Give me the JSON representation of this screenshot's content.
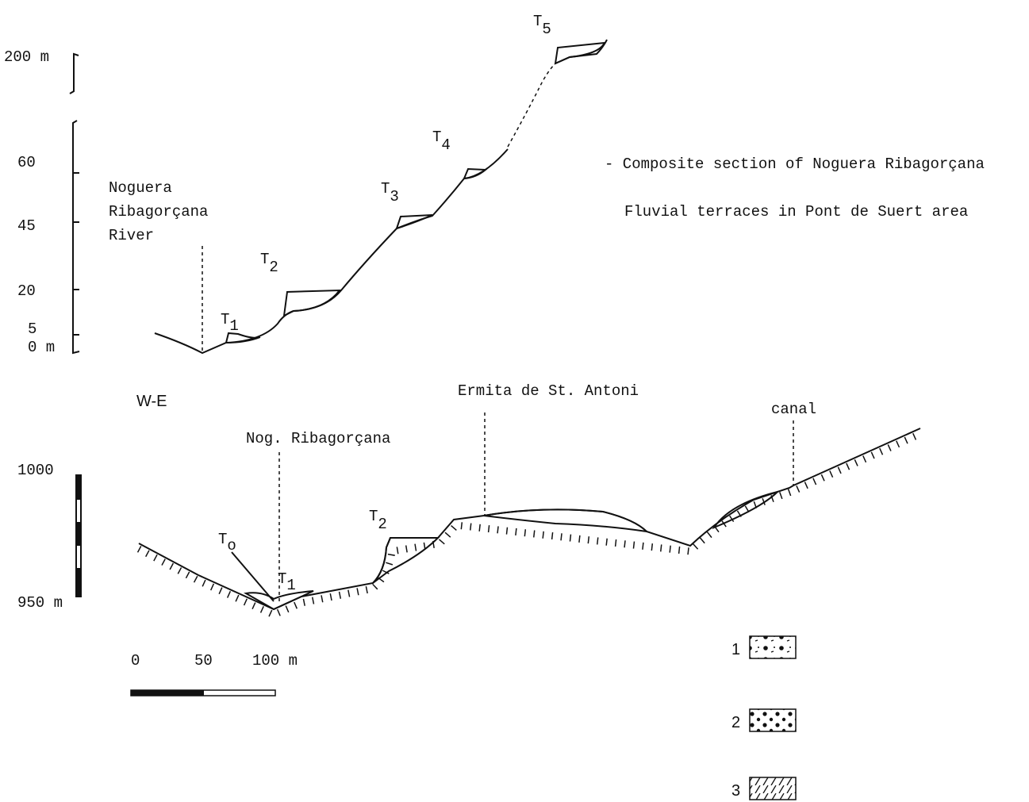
{
  "top_section": {
    "scale_labels": [
      "200 m",
      "60",
      "45",
      "20",
      "5",
      "0 m"
    ],
    "river_label": [
      "Noguera",
      "Ribagorçana",
      "River"
    ],
    "terraces": [
      {
        "label": "T",
        "sub": "1"
      },
      {
        "label": "T",
        "sub": "2"
      },
      {
        "label": "T",
        "sub": "3"
      },
      {
        "label": "T",
        "sub": "4"
      },
      {
        "label": "T",
        "sub": "5"
      }
    ],
    "caption": [
      "- Composite section of Noguera Ribagorçana",
      "Fluvial terraces in Pont de Suert area"
    ]
  },
  "bottom_section": {
    "orientation": "W-E",
    "river_label": "Nog. Ribagorçana",
    "hermitage_label": "Ermita de St. Antoni",
    "canal_label": "canal",
    "terraces": [
      {
        "label": "T",
        "sub": "o"
      },
      {
        "label": "T",
        "sub": "1"
      },
      {
        "label": "T",
        "sub": "2"
      }
    ],
    "vertical_scale": [
      "1000",
      "950 m"
    ],
    "horizontal_scale": [
      "0",
      "50",
      "100 m"
    ]
  },
  "legend": [
    "1",
    "2",
    "3"
  ]
}
